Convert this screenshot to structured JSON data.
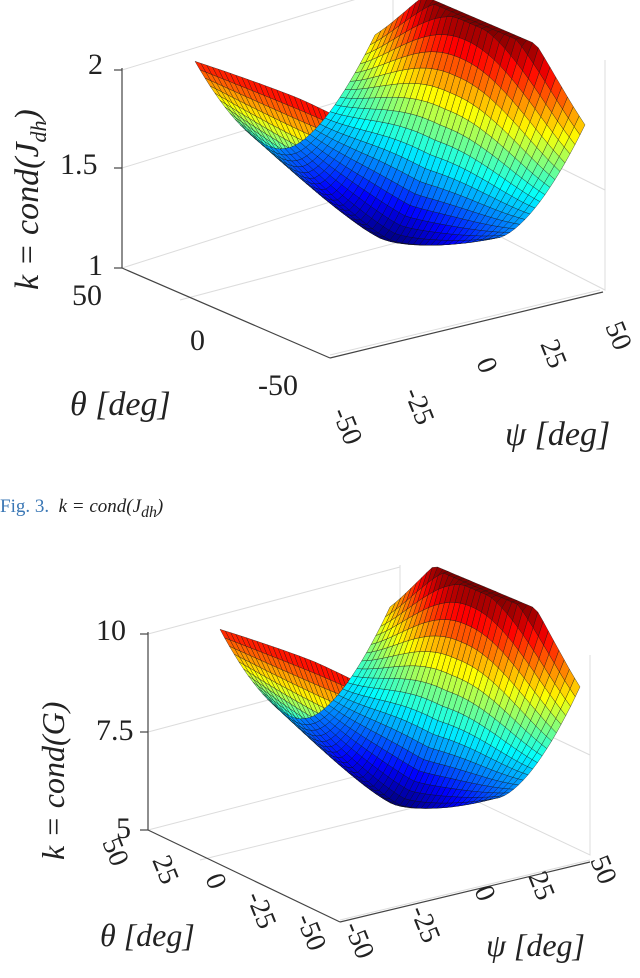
{
  "caption": {
    "label": "Fig. 3.",
    "text": "k = cond(J",
    "sub": "dh",
    "close": ")"
  },
  "chart_data": [
    {
      "type": "surface",
      "zlabel": "k = cond(J_dh)",
      "zlabel_main": "k = cond(J",
      "zlabel_sub": "dh",
      "zlabel_close": ")",
      "xlabel": "ψ [deg]",
      "ylabel": "θ [deg]",
      "x_ticks": [
        "-50",
        "-25",
        "0",
        "25",
        "50"
      ],
      "y_ticks": [
        "50",
        "0",
        "-50"
      ],
      "z_ticks": [
        "1",
        "1.5",
        "2"
      ],
      "xlim": [
        -50,
        50
      ],
      "ylim": [
        -50,
        50
      ],
      "zlim": [
        1,
        2
      ],
      "colormap": "jet",
      "grid": true
    },
    {
      "type": "surface",
      "zlabel": "k = cond(G)",
      "xlabel": "ψ [deg]",
      "ylabel": "θ [deg]",
      "x_ticks": [
        "-50",
        "-25",
        "0",
        "25",
        "50"
      ],
      "y_ticks": [
        "50",
        "25",
        "0",
        "-25",
        "-50"
      ],
      "z_ticks": [
        "5",
        "7.5",
        "10"
      ],
      "xlim": [
        -50,
        50
      ],
      "ylim": [
        -50,
        50
      ],
      "zlim": [
        5,
        10
      ],
      "colormap": "jet",
      "grid": true
    }
  ]
}
